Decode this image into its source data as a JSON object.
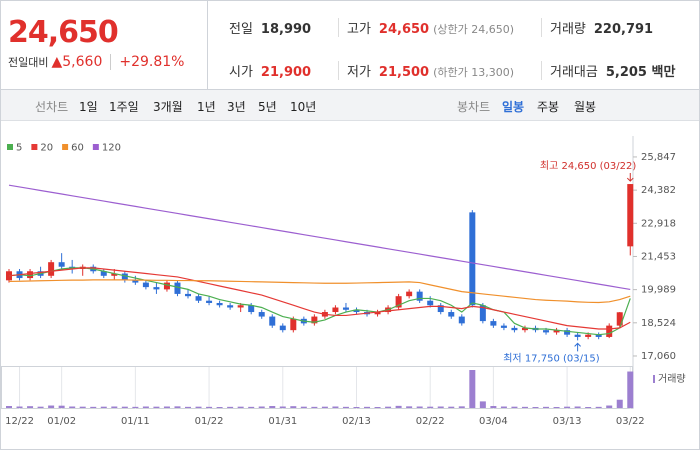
{
  "header": {
    "price": "24,650",
    "change_label": "전일대비",
    "change": "5,660",
    "change_pct": "+29.81%",
    "stats": [
      {
        "label": "전일",
        "value": "18,990"
      },
      {
        "label": "고가",
        "value": "24,650",
        "note": "(상한가 24,650)"
      },
      {
        "label": "거래량",
        "value": "220,791"
      },
      {
        "label": "시가",
        "value": "21,900"
      },
      {
        "label": "저가",
        "value": "21,500",
        "note": "(하한가 13,300)"
      },
      {
        "label": "거래대금",
        "value": "5,205 백만"
      }
    ]
  },
  "tabs": {
    "line_label": "선차트",
    "line": [
      "1일",
      "1주일",
      "3개월",
      "1년",
      "3년",
      "5년",
      "10년"
    ],
    "candle_label": "봉차트",
    "candle": [
      "일봉",
      "주봉",
      "월봉"
    ]
  },
  "chart_data": {
    "type": "candlestick",
    "categories": [
      null,
      "12/22",
      null,
      null,
      null,
      "01/02",
      null,
      null,
      null,
      null,
      null,
      null,
      "01/11",
      null,
      null,
      null,
      null,
      null,
      null,
      "01/22",
      null,
      null,
      null,
      null,
      null,
      null,
      "01/31",
      null,
      null,
      null,
      null,
      null,
      null,
      "02/13",
      null,
      null,
      null,
      null,
      null,
      null,
      "02/22",
      null,
      null,
      null,
      null,
      null,
      "03/04",
      null,
      null,
      null,
      null,
      null,
      null,
      "03/13",
      null,
      null,
      null,
      null,
      null,
      "03/22"
    ],
    "ohlc": [
      [
        20400,
        20900,
        20300,
        20800
      ],
      [
        20800,
        20900,
        20400,
        20500
      ],
      [
        20500,
        20900,
        20400,
        20800
      ],
      [
        20800,
        21000,
        20500,
        20600
      ],
      [
        20600,
        21300,
        20500,
        21200
      ],
      [
        21200,
        21600,
        20900,
        21000
      ],
      [
        21000,
        21300,
        20700,
        20900
      ],
      [
        20900,
        21100,
        20600,
        21000
      ],
      [
        21000,
        21100,
        20700,
        20800
      ],
      [
        20800,
        20900,
        20500,
        20600
      ],
      [
        20600,
        20900,
        20400,
        20700
      ],
      [
        20700,
        20800,
        20300,
        20400
      ],
      [
        20400,
        20600,
        20200,
        20300
      ],
      [
        20300,
        20400,
        20000,
        20100
      ],
      [
        20100,
        20300,
        19800,
        20000
      ],
      [
        20000,
        20400,
        19900,
        20300
      ],
      [
        20300,
        20400,
        19700,
        19800
      ],
      [
        19800,
        20000,
        19600,
        19700
      ],
      [
        19700,
        19800,
        19400,
        19500
      ],
      [
        19500,
        19700,
        19300,
        19400
      ],
      [
        19400,
        19500,
        19200,
        19300
      ],
      [
        19300,
        19400,
        19100,
        19200
      ],
      [
        19200,
        19400,
        19000,
        19300
      ],
      [
        19300,
        19400,
        18900,
        19000
      ],
      [
        19000,
        19100,
        18700,
        18800
      ],
      [
        18800,
        18900,
        18300,
        18400
      ],
      [
        18400,
        18500,
        18100,
        18200
      ],
      [
        18200,
        18800,
        18100,
        18700
      ],
      [
        18700,
        18800,
        18400,
        18500
      ],
      [
        18500,
        18900,
        18400,
        18800
      ],
      [
        18800,
        19100,
        18700,
        19000
      ],
      [
        19000,
        19300,
        18900,
        19200
      ],
      [
        19200,
        19400,
        19000,
        19100
      ],
      [
        19100,
        19200,
        18900,
        19000
      ],
      [
        19000,
        19100,
        18800,
        18900
      ],
      [
        18900,
        19100,
        18800,
        19000
      ],
      [
        19000,
        19300,
        18900,
        19200
      ],
      [
        19200,
        19800,
        19100,
        19700
      ],
      [
        19700,
        20000,
        19600,
        19900
      ],
      [
        19900,
        20000,
        19400,
        19500
      ],
      [
        19500,
        19700,
        19200,
        19300
      ],
      [
        19300,
        19400,
        18900,
        19000
      ],
      [
        19000,
        19100,
        18700,
        18800
      ],
      [
        18800,
        18900,
        18400,
        18500
      ],
      [
        23400,
        23500,
        19200,
        19300
      ],
      [
        19300,
        19400,
        18500,
        18600
      ],
      [
        18600,
        18700,
        18300,
        18400
      ],
      [
        18400,
        18500,
        18200,
        18300
      ],
      [
        18300,
        18400,
        18100,
        18200
      ],
      [
        18200,
        18400,
        18100,
        18300
      ],
      [
        18300,
        18400,
        18100,
        18200
      ],
      [
        18200,
        18300,
        18000,
        18100
      ],
      [
        18100,
        18300,
        18000,
        18200
      ],
      [
        18200,
        18300,
        17900,
        18000
      ],
      [
        18000,
        18100,
        17750,
        17900
      ],
      [
        17900,
        18100,
        17800,
        18000
      ],
      [
        18000,
        18100,
        17800,
        17900
      ],
      [
        17900,
        18500,
        17850,
        18400
      ],
      [
        18400,
        19000,
        18300,
        18990
      ],
      [
        21900,
        24650,
        21500,
        24650
      ]
    ],
    "up_color": "#e0302c",
    "down_color": "#2f6fd6",
    "series": [
      {
        "name": "5",
        "color": "#4caf50",
        "values": [
          20600,
          20650,
          20600,
          20700,
          20800,
          20900,
          20950,
          20950,
          20900,
          20800,
          20700,
          20600,
          20500,
          20400,
          20300,
          20200,
          20100,
          20000,
          19800,
          19700,
          19550,
          19450,
          19350,
          19300,
          19200,
          19000,
          18800,
          18700,
          18600,
          18550,
          18650,
          18850,
          19000,
          19100,
          19050,
          19000,
          19100,
          19300,
          19500,
          19600,
          19600,
          19500,
          19300,
          19000,
          19400,
          19300,
          19100,
          19000,
          18500,
          18300,
          18250,
          18250,
          18200,
          18150,
          18100,
          18050,
          18000,
          18050,
          18300,
          19600
        ]
      },
      {
        "name": "20",
        "color": "#e53935",
        "values": [
          20600,
          20650,
          20700,
          20750,
          20800,
          20850,
          20900,
          20950,
          20950,
          20900,
          20850,
          20800,
          20750,
          20700,
          20650,
          20600,
          20550,
          20450,
          20350,
          20250,
          20150,
          20050,
          19950,
          19850,
          19750,
          19600,
          19450,
          19300,
          19150,
          19000,
          18900,
          18850,
          18850,
          18900,
          18950,
          19000,
          19050,
          19100,
          19150,
          19200,
          19250,
          19250,
          19200,
          19150,
          19250,
          19200,
          19100,
          19000,
          18900,
          18800,
          18700,
          18600,
          18500,
          18400,
          18350,
          18300,
          18250,
          18250,
          18300,
          18550
        ]
      },
      {
        "name": "60",
        "color": "#f0902c",
        "values": [
          20350,
          20360,
          20370,
          20380,
          20390,
          20400,
          20410,
          20410,
          20420,
          20420,
          20420,
          20420,
          20410,
          20410,
          20400,
          20400,
          20390,
          20390,
          20380,
          20380,
          20370,
          20360,
          20350,
          20340,
          20330,
          20320,
          20310,
          20300,
          20290,
          20280,
          20270,
          20270,
          20270,
          20280,
          20290,
          20300,
          20310,
          20320,
          20330,
          20300,
          20200,
          20100,
          20000,
          19900,
          19850,
          19800,
          19750,
          19700,
          19650,
          19600,
          19550,
          19520,
          19500,
          19480,
          19450,
          19430,
          19420,
          19450,
          19550,
          19700
        ]
      },
      {
        "name": "120",
        "color": "#9c5fd0",
        "values": [
          24600,
          24522,
          24444,
          24366,
          24288,
          24210,
          24132,
          24054,
          23976,
          23898,
          23820,
          23742,
          23664,
          23586,
          23508,
          23430,
          23352,
          23274,
          23196,
          23118,
          23040,
          22962,
          22884,
          22806,
          22728,
          22650,
          22572,
          22494,
          22416,
          22338,
          22260,
          22182,
          22104,
          22026,
          21948,
          21870,
          21792,
          21714,
          21636,
          21558,
          21480,
          21402,
          21324,
          21246,
          21168,
          21090,
          21012,
          20934,
          20856,
          20778,
          20700,
          20622,
          20544,
          20466,
          20388,
          20310,
          20232,
          20154,
          20076,
          19998
        ]
      }
    ],
    "volume_label": "거래량",
    "volume_color": "#9c7fd0",
    "volumes": [
      12000,
      9000,
      11000,
      8000,
      15000,
      14000,
      9000,
      8000,
      7000,
      8000,
      9000,
      8000,
      7000,
      9000,
      8000,
      9000,
      10000,
      7000,
      8000,
      7000,
      6000,
      7000,
      8000,
      7000,
      9000,
      12000,
      9000,
      11000,
      8000,
      7000,
      8000,
      9000,
      7000,
      6000,
      7000,
      6000,
      8000,
      13000,
      10000,
      9000,
      8000,
      9000,
      8000,
      10000,
      230000,
      40000,
      12000,
      9000,
      8000,
      7000,
      6000,
      7000,
      6000,
      8000,
      9000,
      6000,
      7000,
      15000,
      50000,
      220791
    ],
    "ylim": [
      16750,
      26330
    ],
    "yticks": [
      {
        "value": 17060,
        "label": "17,060"
      },
      {
        "value": 18524,
        "label": "18,524"
      },
      {
        "value": 19989,
        "label": "19,989"
      },
      {
        "value": 21453,
        "label": "21,453"
      },
      {
        "value": 22918,
        "label": "22,918"
      },
      {
        "value": 24382,
        "label": "24,382"
      },
      {
        "value": 25847,
        "label": "25,847"
      }
    ],
    "annotations": [
      {
        "text": "최고 24,650 (03/22)",
        "index": 59
      },
      {
        "text": "최저 17,750 (03/15)",
        "index": 54
      }
    ]
  }
}
